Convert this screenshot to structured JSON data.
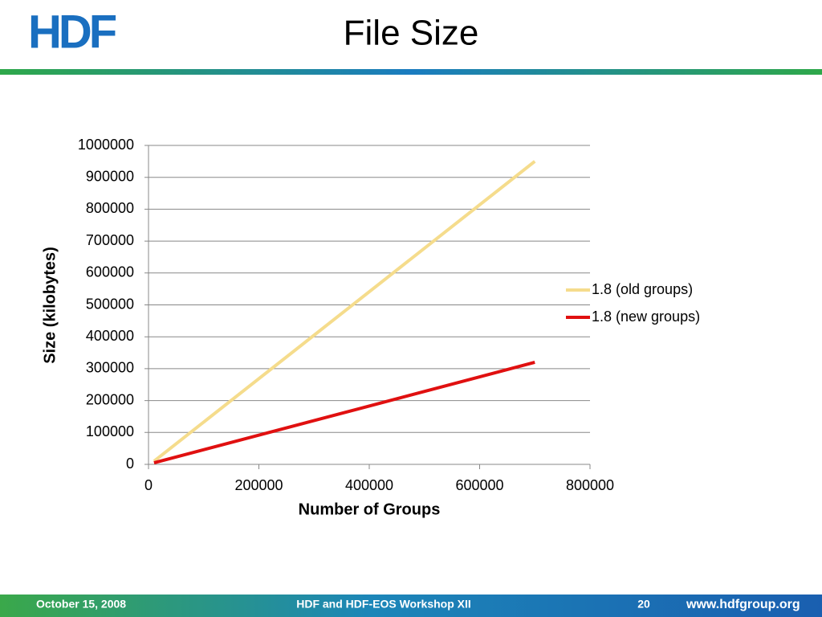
{
  "logo": "HDF",
  "chart_data": {
    "type": "line",
    "title": "File Size",
    "x_label": "Number of Groups",
    "y_label": "Size (kilobytes)",
    "x": [
      10000,
      350000,
      700000
    ],
    "series": [
      {
        "name": "1.8 (old groups)",
        "color": "#f5dc8c",
        "values": [
          10000,
          473000,
          950000
        ]
      },
      {
        "name": "1.8 (new groups)",
        "color": "#e01010",
        "values": [
          5000,
          160000,
          320000
        ]
      }
    ],
    "xlim": [
      0,
      800000
    ],
    "xticks": [
      0,
      200000,
      400000,
      600000,
      800000
    ],
    "ylim": [
      0,
      1000000
    ],
    "yticks": [
      0,
      100000,
      200000,
      300000,
      400000,
      500000,
      600000,
      700000,
      800000,
      900000,
      1000000
    ],
    "grid": true,
    "legend": "right"
  },
  "footer": {
    "date": "October 15, 2008",
    "event": "HDF and HDF-EOS Workshop XII",
    "page": "20",
    "url": "www.hdfgroup.org"
  }
}
